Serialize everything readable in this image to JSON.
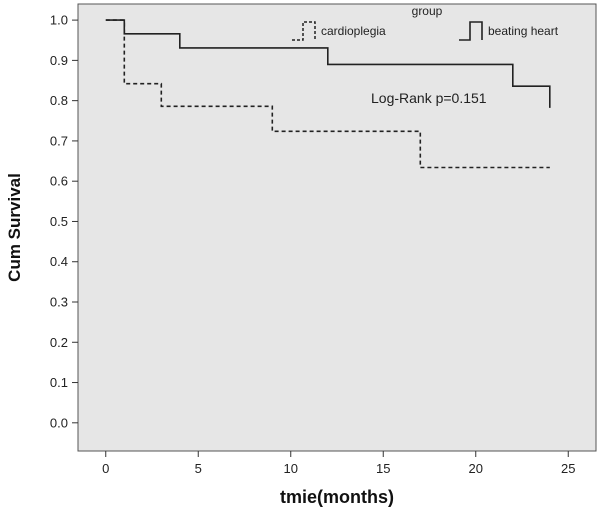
{
  "chart_data": {
    "type": "line",
    "subtype": "kaplan-meier step",
    "xlabel": "tmie(months)",
    "ylabel": "Cum Survival",
    "xlim": [
      -1.5,
      26.5
    ],
    "ylim": [
      -0.07,
      1.04
    ],
    "x_ticks": [
      0,
      5,
      10,
      15,
      20,
      25
    ],
    "x_tick_labels": [
      "0",
      "5",
      "10",
      "15",
      "20",
      "25"
    ],
    "y_ticks": [
      0.0,
      0.1,
      0.2,
      0.3,
      0.4,
      0.5,
      0.6,
      0.7,
      0.8,
      0.9,
      1.0
    ],
    "y_tick_labels": [
      "0.0",
      "0.1",
      "0.2",
      "0.3",
      "0.4",
      "0.5",
      "0.6",
      "0.7",
      "0.8",
      "0.9",
      "1.0"
    ],
    "grid": false,
    "plot_background": "#e6e6e6",
    "legend": {
      "title": "group",
      "placement": "top-right",
      "entries": [
        {
          "name": "cardioplegia",
          "style": "dashed"
        },
        {
          "name": "beating heart",
          "style": "solid"
        }
      ]
    },
    "annotations": [
      "Log-Rank p=0.151"
    ],
    "series": [
      {
        "name": "cardioplegia",
        "style": "dashed",
        "color": "#222222",
        "steps": [
          [
            0,
            1.0
          ],
          [
            1,
            0.842
          ],
          [
            3,
            0.786
          ],
          [
            9,
            0.724
          ],
          [
            17,
            0.634
          ],
          [
            24,
            0.634
          ]
        ]
      },
      {
        "name": "beating heart",
        "style": "solid",
        "color": "#222222",
        "steps": [
          [
            0,
            1.0
          ],
          [
            1,
            0.966
          ],
          [
            4,
            0.931
          ],
          [
            12,
            0.89
          ],
          [
            22,
            0.836
          ],
          [
            24,
            0.782
          ]
        ]
      }
    ]
  }
}
